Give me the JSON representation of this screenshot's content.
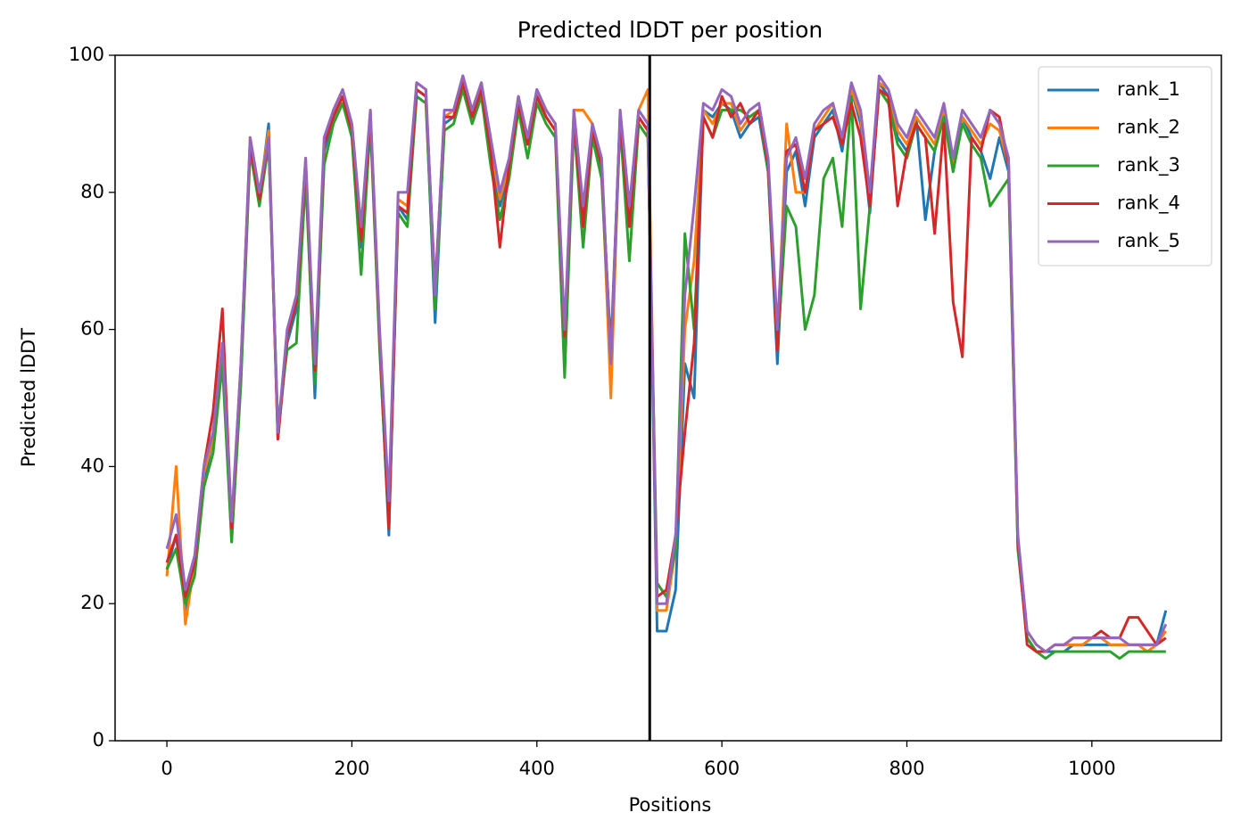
{
  "chart_data": {
    "type": "line",
    "title": "Predicted lDDT per position",
    "xlabel": "Positions",
    "ylabel": "Predicted lDDT",
    "x": [
      0,
      10,
      20,
      30,
      40,
      50,
      60,
      70,
      80,
      90,
      100,
      110,
      120,
      130,
      140,
      150,
      160,
      170,
      180,
      190,
      200,
      210,
      220,
      230,
      240,
      250,
      260,
      270,
      280,
      290,
      300,
      310,
      320,
      330,
      340,
      350,
      360,
      370,
      380,
      390,
      400,
      410,
      420,
      430,
      440,
      450,
      460,
      470,
      480,
      490,
      500,
      510,
      520,
      530,
      540,
      550,
      560,
      570,
      580,
      590,
      600,
      610,
      620,
      630,
      640,
      650,
      660,
      670,
      680,
      690,
      700,
      710,
      720,
      730,
      740,
      750,
      760,
      770,
      780,
      790,
      800,
      810,
      820,
      830,
      840,
      850,
      860,
      870,
      880,
      890,
      900,
      910,
      920,
      930,
      940,
      950,
      960,
      970,
      980,
      990,
      1000,
      1010,
      1020,
      1030,
      1040,
      1050,
      1060,
      1070,
      1080
    ],
    "series": [
      {
        "name": "rank_1",
        "color": "#1f77b4",
        "values": [
          25,
          30,
          19,
          25,
          38,
          44,
          56,
          31,
          53,
          87,
          79,
          90,
          44,
          58,
          63,
          84,
          50,
          86,
          91,
          94,
          89,
          72,
          91,
          58,
          30,
          78,
          76,
          95,
          94,
          61,
          90,
          91,
          96,
          91,
          95,
          86,
          78,
          83,
          93,
          87,
          94,
          91,
          89,
          58,
          91,
          76,
          89,
          83,
          57,
          91,
          76,
          91,
          89,
          16,
          16,
          22,
          55,
          50,
          92,
          91,
          93,
          92,
          88,
          90,
          91,
          83,
          55,
          83,
          86,
          78,
          88,
          90,
          92,
          86,
          95,
          90,
          77,
          96,
          94,
          88,
          86,
          91,
          76,
          86,
          92,
          84,
          91,
          88,
          86,
          82,
          88,
          83,
          28,
          15,
          13,
          13,
          13,
          13,
          14,
          14,
          14,
          14,
          14,
          14,
          14,
          14,
          14,
          14,
          19
        ]
      },
      {
        "name": "rank_2",
        "color": "#ff7f0e",
        "values": [
          24,
          40,
          17,
          26,
          39,
          44,
          57,
          29,
          54,
          88,
          80,
          89,
          44,
          59,
          64,
          85,
          53,
          87,
          92,
          95,
          90,
          74,
          92,
          59,
          32,
          79,
          78,
          96,
          95,
          64,
          91,
          92,
          97,
          92,
          96,
          87,
          79,
          84,
          94,
          88,
          95,
          92,
          90,
          59,
          92,
          92,
          90,
          84,
          50,
          92,
          77,
          92,
          95,
          19,
          19,
          28,
          60,
          70,
          92,
          90,
          93,
          93,
          89,
          91,
          92,
          84,
          58,
          90,
          80,
          80,
          89,
          91,
          93,
          87,
          95,
          91,
          79,
          96,
          95,
          89,
          87,
          91,
          89,
          87,
          92,
          84,
          91,
          89,
          87,
          90,
          89,
          84,
          29,
          16,
          14,
          13,
          14,
          14,
          14,
          14,
          15,
          15,
          14,
          14,
          14,
          14,
          13,
          14,
          16
        ]
      },
      {
        "name": "rank_3",
        "color": "#2ca02c",
        "values": [
          25,
          28,
          20,
          24,
          37,
          42,
          55,
          29,
          52,
          86,
          78,
          87,
          46,
          57,
          58,
          82,
          52,
          84,
          90,
          93,
          88,
          68,
          90,
          57,
          31,
          77,
          75,
          94,
          93,
          63,
          89,
          90,
          95,
          90,
          94,
          84,
          76,
          82,
          92,
          85,
          93,
          90,
          88,
          53,
          90,
          72,
          88,
          82,
          56,
          90,
          70,
          90,
          88,
          23,
          21,
          28,
          74,
          60,
          91,
          88,
          92,
          92,
          92,
          91,
          92,
          83,
          57,
          78,
          75,
          60,
          65,
          82,
          85,
          75,
          94,
          63,
          78,
          95,
          93,
          87,
          85,
          90,
          88,
          86,
          91,
          83,
          90,
          87,
          85,
          78,
          80,
          82,
          28,
          15,
          13,
          12,
          13,
          13,
          13,
          13,
          13,
          13,
          13,
          12,
          13,
          13,
          13,
          13,
          13
        ]
      },
      {
        "name": "rank_4",
        "color": "#d62728",
        "values": [
          26,
          30,
          21,
          26,
          40,
          48,
          63,
          31,
          55,
          87,
          79,
          88,
          44,
          59,
          64,
          84,
          54,
          87,
          91,
          94,
          89,
          73,
          91,
          59,
          31,
          78,
          77,
          95,
          94,
          66,
          91,
          91,
          96,
          91,
          95,
          86,
          72,
          84,
          93,
          87,
          94,
          91,
          89,
          59,
          91,
          75,
          89,
          84,
          56,
          91,
          75,
          91,
          89,
          21,
          22,
          30,
          45,
          58,
          91,
          88,
          94,
          91,
          93,
          90,
          92,
          84,
          57,
          86,
          87,
          80,
          89,
          90,
          91,
          87,
          93,
          88,
          78,
          95,
          94,
          78,
          86,
          90,
          88,
          74,
          90,
          64,
          56,
          88,
          86,
          92,
          91,
          84,
          29,
          14,
          13,
          13,
          14,
          14,
          15,
          15,
          15,
          16,
          15,
          15,
          18,
          18,
          16,
          14,
          15
        ]
      },
      {
        "name": "rank_5",
        "color": "#9467bd",
        "values": [
          28,
          33,
          22,
          27,
          40,
          45,
          58,
          32,
          55,
          88,
          80,
          88,
          45,
          60,
          65,
          85,
          55,
          88,
          92,
          95,
          90,
          75,
          92,
          60,
          35,
          80,
          80,
          96,
          95,
          65,
          92,
          92,
          97,
          92,
          96,
          88,
          80,
          85,
          94,
          88,
          95,
          92,
          90,
          60,
          92,
          78,
          90,
          85,
          55,
          92,
          78,
          92,
          90,
          20,
          20,
          30,
          65,
          78,
          93,
          92,
          95,
          94,
          90,
          92,
          93,
          85,
          60,
          85,
          88,
          82,
          90,
          92,
          93,
          88,
          96,
          92,
          80,
          97,
          95,
          90,
          88,
          92,
          90,
          88,
          93,
          85,
          92,
          90,
          88,
          92,
          90,
          85,
          30,
          16,
          14,
          13,
          14,
          14,
          15,
          15,
          15,
          15,
          15,
          15,
          14,
          14,
          14,
          14,
          17
        ]
      }
    ],
    "vlines": [
      522
    ],
    "xlim": [
      -56,
      1140
    ],
    "ylim": [
      0,
      100
    ],
    "xticks": [
      0,
      200,
      400,
      600,
      800,
      1000
    ],
    "yticks": [
      0,
      20,
      40,
      60,
      80,
      100
    ],
    "legend": "upper right"
  }
}
